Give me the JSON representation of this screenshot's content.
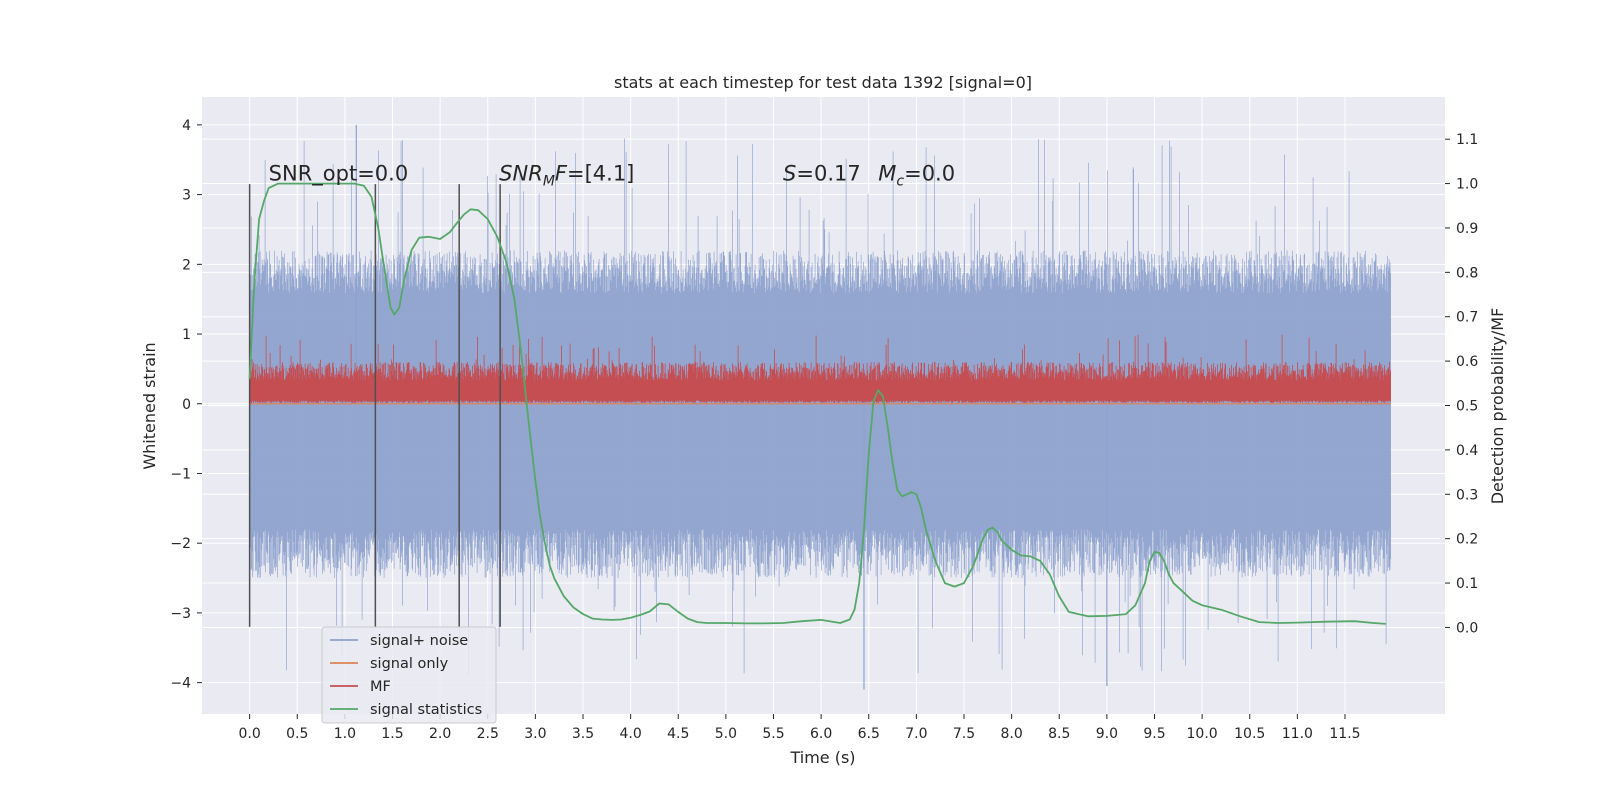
{
  "chart_data": {
    "type": "line",
    "title": "stats at each timestep for test data 1392 [signal=0]",
    "xlabel": "Time (s)",
    "ylabel_left": "Whitened strain",
    "ylabel_right": "Detection probability/MF",
    "xlim": [
      -0.5,
      12.55
    ],
    "ylim_left": [
      -4.45,
      4.4
    ],
    "ylim_right": [
      -0.195,
      1.195
    ],
    "x_ticks": [
      "0.0",
      "0.5",
      "1.0",
      "1.5",
      "2.0",
      "2.5",
      "3.0",
      "3.5",
      "4.0",
      "4.5",
      "5.0",
      "5.5",
      "6.0",
      "6.5",
      "7.0",
      "7.5",
      "8.0",
      "8.5",
      "9.0",
      "9.5",
      "10.0",
      "10.5",
      "11.0",
      "11.5"
    ],
    "y_ticks_left": [
      "−4",
      "−3",
      "−2",
      "−1",
      "0",
      "1",
      "2",
      "3",
      "4"
    ],
    "y_ticks_right": [
      "0.0",
      "0.1",
      "0.2",
      "0.3",
      "0.4",
      "0.5",
      "0.6",
      "0.7",
      "0.8",
      "0.9",
      "1.0",
      "1.1"
    ],
    "grid": true,
    "legend_placement": "lower-left",
    "colors": {
      "background": "#eaeaf2",
      "grid": "#ffffff",
      "noise": "#8ea2cd",
      "signal_only": "#dd8452",
      "mf": "#c44e52",
      "stat": "#55a868",
      "vline": "#505050"
    },
    "series": [
      {
        "name": "signal+ noise",
        "axis": "left",
        "x_range": [
          0.0,
          11.98
        ],
        "y_envelope": [
          -2.5,
          2.2
        ],
        "y_extremes": [
          -4.1,
          4.0
        ],
        "description_values": {
          "typical_max": 2.2,
          "typical_min": -2.5
        }
      },
      {
        "name": "signal only",
        "axis": "left",
        "x": [
          0.0,
          11.98
        ],
        "y": [
          0.0,
          0.0
        ]
      },
      {
        "name": "MF",
        "axis": "left",
        "x_range": [
          0.0,
          11.98
        ],
        "y_envelope": [
          0.05,
          0.6
        ],
        "y_extremes": [
          0.0,
          1.0
        ]
      },
      {
        "name": "signal statistics",
        "axis": "right",
        "x": [
          0.0,
          0.05,
          0.1,
          0.15,
          0.2,
          0.3,
          0.45,
          0.6,
          0.8,
          1.0,
          1.1,
          1.2,
          1.28,
          1.35,
          1.42,
          1.48,
          1.52,
          1.57,
          1.62,
          1.7,
          1.78,
          1.88,
          2.0,
          2.1,
          2.18,
          2.25,
          2.32,
          2.4,
          2.5,
          2.6,
          2.7,
          2.78,
          2.85,
          2.92,
          3.0,
          3.05,
          3.1,
          3.15,
          3.2,
          3.3,
          3.4,
          3.5,
          3.6,
          3.7,
          3.8,
          3.9,
          4.0,
          4.1,
          4.2,
          4.3,
          4.4,
          4.5,
          4.6,
          4.7,
          4.8,
          5.0,
          5.2,
          5.4,
          5.6,
          5.8,
          6.0,
          6.2,
          6.3,
          6.35,
          6.4,
          6.45,
          6.5,
          6.55,
          6.6,
          6.65,
          6.7,
          6.75,
          6.8,
          6.85,
          6.9,
          6.95,
          7.0,
          7.05,
          7.1,
          7.2,
          7.3,
          7.4,
          7.5,
          7.6,
          7.7,
          7.75,
          7.8,
          7.85,
          7.9,
          8.0,
          8.1,
          8.2,
          8.3,
          8.4,
          8.5,
          8.6,
          8.8,
          9.0,
          9.2,
          9.3,
          9.4,
          9.45,
          9.5,
          9.55,
          9.6,
          9.65,
          9.7,
          9.8,
          9.9,
          10.0,
          10.2,
          10.4,
          10.6,
          10.8,
          11.0,
          11.3,
          11.6,
          11.8,
          11.93
        ],
        "y": [
          0.56,
          0.78,
          0.92,
          0.96,
          0.99,
          1.0,
          1.0,
          1.0,
          1.0,
          1.0,
          1.0,
          0.995,
          0.97,
          0.9,
          0.8,
          0.72,
          0.705,
          0.72,
          0.78,
          0.85,
          0.878,
          0.88,
          0.875,
          0.89,
          0.912,
          0.93,
          0.942,
          0.94,
          0.92,
          0.88,
          0.82,
          0.74,
          0.62,
          0.48,
          0.33,
          0.25,
          0.19,
          0.14,
          0.11,
          0.07,
          0.045,
          0.03,
          0.02,
          0.018,
          0.017,
          0.018,
          0.022,
          0.028,
          0.036,
          0.054,
          0.052,
          0.035,
          0.02,
          0.012,
          0.01,
          0.01,
          0.009,
          0.009,
          0.01,
          0.014,
          0.017,
          0.01,
          0.018,
          0.04,
          0.1,
          0.22,
          0.39,
          0.51,
          0.535,
          0.52,
          0.45,
          0.37,
          0.31,
          0.295,
          0.3,
          0.305,
          0.3,
          0.27,
          0.22,
          0.15,
          0.1,
          0.092,
          0.1,
          0.14,
          0.2,
          0.22,
          0.225,
          0.215,
          0.195,
          0.175,
          0.162,
          0.16,
          0.15,
          0.12,
          0.07,
          0.035,
          0.025,
          0.026,
          0.03,
          0.05,
          0.1,
          0.15,
          0.17,
          0.168,
          0.15,
          0.12,
          0.1,
          0.08,
          0.06,
          0.05,
          0.04,
          0.025,
          0.012,
          0.01,
          0.011,
          0.013,
          0.014,
          0.01,
          0.008
        ]
      }
    ],
    "vertical_lines": [
      {
        "x": 0.0,
        "ymin": -3.2,
        "ymax": 3.15
      },
      {
        "x": 1.32,
        "ymin": -3.2,
        "ymax": 3.15
      },
      {
        "x": 2.2,
        "ymin": -3.2,
        "ymax": 3.15
      },
      {
        "x": 2.63,
        "ymin": -3.2,
        "ymax": 3.15
      }
    ],
    "annotations": [
      {
        "text": "SNR_opt=0.0",
        "x": 0.2,
        "y": 3.2
      },
      {
        "text": "SNR",
        "sub": "M",
        "tail": "F=[4.1]",
        "x": 2.62,
        "y": 3.2
      },
      {
        "text": "S",
        "tail": "=0.17",
        "x": 5.6,
        "y": 3.2
      },
      {
        "text": "M",
        "sub": "c",
        "tail": "=0.0",
        "x": 6.6,
        "y": 3.2
      }
    ],
    "legend": [
      "signal+ noise",
      "signal only",
      "MF",
      "signal statistics"
    ]
  }
}
